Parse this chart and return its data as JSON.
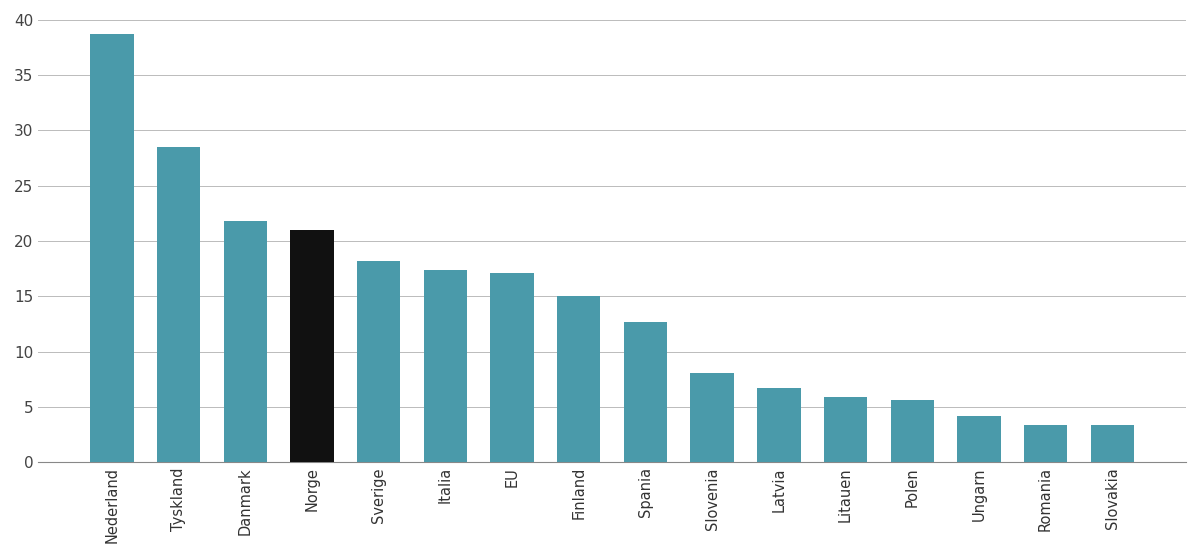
{
  "categories": [
    "Nederland",
    "Tyskland",
    "Danmark",
    "Norge",
    "Sverige",
    "Italia",
    "EU",
    "Finland",
    "Spania",
    "Slovenia",
    "Latvia",
    "Litauen",
    "Polen",
    "Ungarn",
    "Romania",
    "Slovakia"
  ],
  "values": [
    38.7,
    28.5,
    21.8,
    21.0,
    18.2,
    17.4,
    17.1,
    15.0,
    12.7,
    8.1,
    6.7,
    5.9,
    5.6,
    4.2,
    3.4,
    3.4
  ],
  "bar_colors": [
    "#4a9aaa",
    "#4a9aaa",
    "#4a9aaa",
    "#111111",
    "#4a9aaa",
    "#4a9aaa",
    "#4a9aaa",
    "#4a9aaa",
    "#4a9aaa",
    "#4a9aaa",
    "#4a9aaa",
    "#4a9aaa",
    "#4a9aaa",
    "#4a9aaa",
    "#4a9aaa",
    "#4a9aaa"
  ],
  "ylim": [
    0,
    40
  ],
  "yticks": [
    0,
    5,
    10,
    15,
    20,
    25,
    30,
    35,
    40
  ],
  "background_color": "#ffffff",
  "grid_color": "#bbbbbb",
  "bar_width": 0.65,
  "label_fontsize": 10.5,
  "tick_fontsize": 11
}
